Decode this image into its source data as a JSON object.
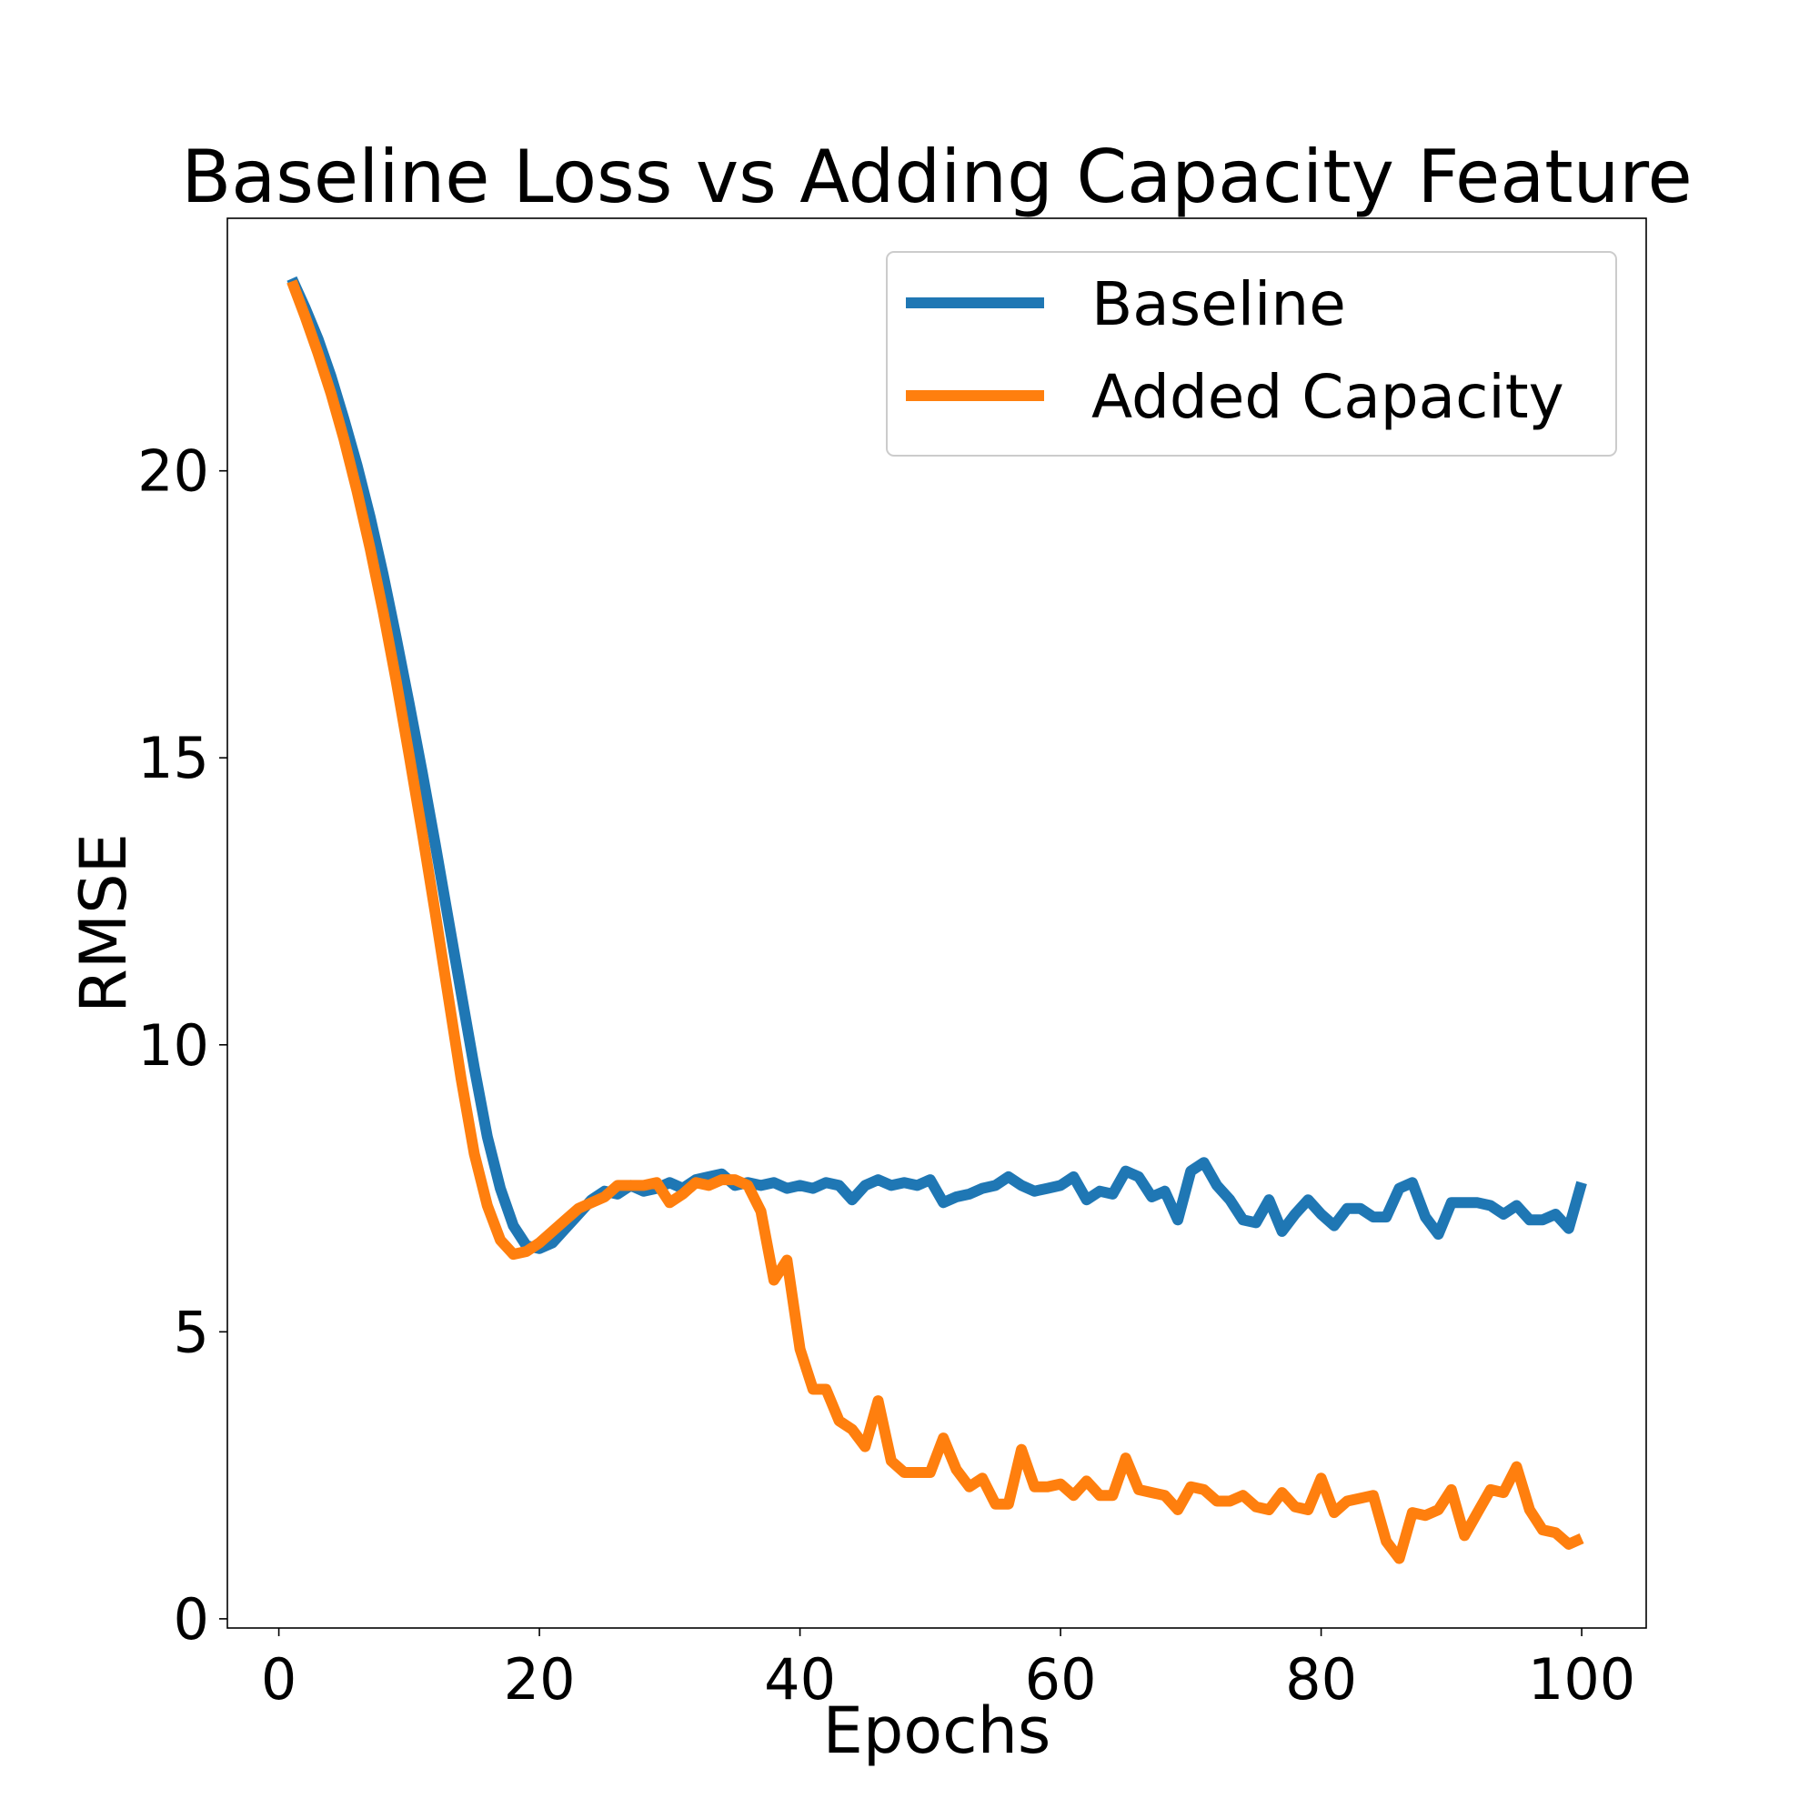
{
  "chart_data": {
    "type": "line",
    "title": "Baseline Loss vs Adding Capacity Feature",
    "xlabel": "Epochs",
    "ylabel": "RMSE",
    "xlim": [
      -3.95,
      104.95
    ],
    "ylim": [
      -0.16,
      24.4
    ],
    "xticks": [
      0,
      20,
      40,
      60,
      80,
      100
    ],
    "yticks": [
      0,
      5,
      10,
      15,
      20
    ],
    "grid": false,
    "legend_position": "top-right",
    "x": [
      1,
      2,
      3,
      4,
      5,
      6,
      7,
      8,
      9,
      10,
      11,
      12,
      13,
      14,
      15,
      16,
      17,
      18,
      19,
      20,
      21,
      22,
      23,
      24,
      25,
      26,
      27,
      28,
      29,
      30,
      31,
      32,
      33,
      34,
      35,
      36,
      37,
      38,
      39,
      40,
      41,
      42,
      43,
      44,
      45,
      46,
      47,
      48,
      49,
      50,
      51,
      52,
      53,
      54,
      55,
      56,
      57,
      58,
      59,
      60,
      61,
      62,
      63,
      64,
      65,
      66,
      67,
      68,
      69,
      70,
      71,
      72,
      73,
      74,
      75,
      76,
      77,
      78,
      79,
      80,
      81,
      82,
      83,
      84,
      85,
      86,
      87,
      88,
      89,
      90,
      91,
      92,
      93,
      94,
      95,
      96,
      97,
      98,
      99,
      100
    ],
    "series": [
      {
        "name": "Baseline",
        "color": "#1f77b4",
        "values": [
          23.35,
          22.85,
          22.3,
          21.65,
          20.9,
          20.1,
          19.2,
          18.2,
          17.1,
          15.95,
          14.75,
          13.5,
          12.2,
          10.9,
          9.6,
          8.4,
          7.5,
          6.85,
          6.5,
          6.45,
          6.55,
          6.8,
          7.05,
          7.3,
          7.45,
          7.4,
          7.55,
          7.45,
          7.5,
          7.6,
          7.5,
          7.65,
          7.7,
          7.75,
          7.55,
          7.6,
          7.55,
          7.6,
          7.5,
          7.55,
          7.5,
          7.6,
          7.55,
          7.3,
          7.55,
          7.65,
          7.55,
          7.6,
          7.55,
          7.65,
          7.25,
          7.35,
          7.4,
          7.5,
          7.55,
          7.7,
          7.55,
          7.45,
          7.5,
          7.55,
          7.7,
          7.3,
          7.45,
          7.4,
          7.8,
          7.7,
          7.35,
          7.45,
          6.95,
          7.8,
          7.95,
          7.55,
          7.3,
          6.95,
          6.9,
          7.3,
          6.75,
          7.05,
          7.3,
          7.05,
          6.85,
          7.15,
          7.15,
          7.0,
          7.0,
          7.5,
          7.6,
          7.0,
          6.7,
          7.25,
          7.25,
          7.25,
          7.2,
          7.05,
          7.2,
          6.95,
          6.95,
          7.05,
          6.8,
          7.6
        ]
      },
      {
        "name": "Added Capacity",
        "color": "#ff7f0e",
        "values": [
          23.3,
          22.7,
          22.05,
          21.35,
          20.55,
          19.65,
          18.65,
          17.55,
          16.35,
          15.05,
          13.7,
          12.3,
          10.85,
          9.4,
          8.1,
          7.2,
          6.6,
          6.35,
          6.4,
          6.55,
          6.75,
          6.95,
          7.15,
          7.25,
          7.35,
          7.55,
          7.55,
          7.55,
          7.6,
          7.25,
          7.4,
          7.6,
          7.55,
          7.65,
          7.65,
          7.55,
          7.1,
          5.9,
          6.25,
          4.7,
          4.0,
          4.0,
          3.45,
          3.3,
          3.0,
          3.8,
          2.75,
          2.55,
          2.55,
          2.55,
          3.15,
          2.6,
          2.3,
          2.45,
          2.0,
          2.0,
          2.95,
          2.3,
          2.3,
          2.35,
          2.15,
          2.4,
          2.15,
          2.15,
          2.8,
          2.25,
          2.2,
          2.15,
          1.9,
          2.3,
          2.25,
          2.05,
          2.05,
          2.15,
          1.95,
          1.9,
          2.2,
          1.95,
          1.9,
          2.45,
          1.85,
          2.05,
          2.1,
          2.15,
          1.35,
          1.05,
          1.85,
          1.8,
          1.9,
          2.25,
          1.45,
          1.85,
          2.25,
          2.2,
          2.65,
          1.9,
          1.55,
          1.5,
          1.3,
          1.4
        ]
      }
    ]
  }
}
